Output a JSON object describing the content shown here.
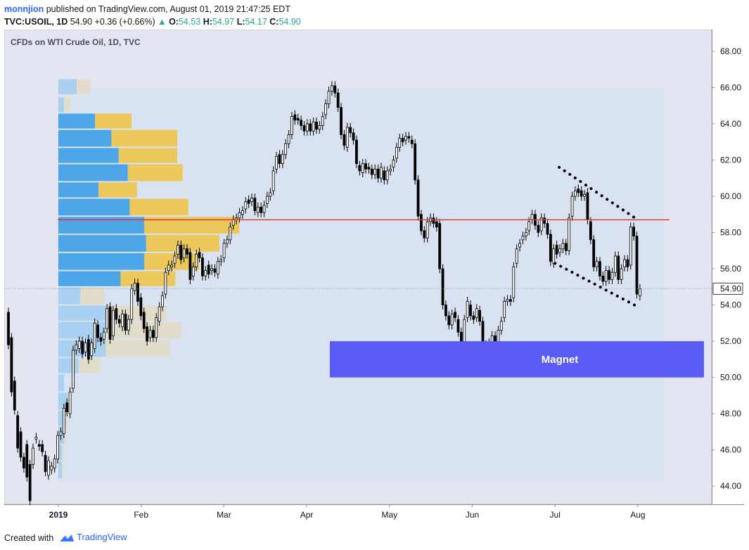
{
  "header": {
    "author": "monnjion",
    "published_text": "published on TradingView.com, August 01, 2019 21:47:25 EDT",
    "symbol": "TVC:USOIL, 1D",
    "last": "54.90",
    "change": "+0.36 (+0.66%)",
    "o_label": "O:",
    "o_value": "54.53",
    "h_label": "H:",
    "h_value": "54.97",
    "l_label": "L:",
    "l_value": "54.17",
    "c_label": "C:",
    "c_value": "54.90"
  },
  "footer": {
    "created_with": "Created with",
    "brand": "TradingView"
  },
  "colors": {
    "resistance_line": "#e53935",
    "magnet_box": "#5a5af5",
    "volume_up_bright": "#4da6e8",
    "volume_down_bright": "#ebc75c",
    "volume_up_faded": "#a9d0ee",
    "volume_down_faded": "#e2dccb",
    "pane_bg": "#e3e6f1",
    "profile_bg": "#d8e2f0"
  },
  "chart_data": {
    "type": "candlestick",
    "title": "CFDs on WTI Crude Oil, 1D, TVC",
    "price_axis": {
      "ticks": [
        "44.00",
        "46.00",
        "48.00",
        "50.00",
        "52.00",
        "54.00",
        "56.00",
        "58.00",
        "60.00",
        "62.00",
        "64.00",
        "66.00",
        "68.00"
      ],
      "range": [
        43.0,
        69.2
      ],
      "last_price_label": "54.90"
    },
    "time_axis": {
      "labels": [
        "2019",
        "Feb",
        "Mar",
        "Apr",
        "May",
        "Jun",
        "Jul",
        "Aug"
      ],
      "label_positions": [
        0.0,
        1.0,
        2.0,
        3.0,
        4.0,
        5.0,
        6.0,
        7.0
      ]
    },
    "candles_end_label_index": 7.0,
    "candles": [
      [
        53.6,
        51.8
      ],
      [
        52.2,
        49.2
      ],
      [
        49.8,
        48.2
      ],
      [
        47.9,
        46.1
      ],
      [
        47.0,
        45.6
      ],
      [
        45.6,
        45.0
      ],
      [
        46.3,
        44.5
      ],
      [
        45.2,
        43.2
      ],
      [
        45.2,
        46.1
      ],
      [
        46.6,
        46.7
      ],
      [
        46.3,
        46.2
      ],
      [
        46.3,
        45.9
      ],
      [
        45.7,
        44.8
      ],
      [
        44.6,
        45.4
      ],
      [
        44.9,
        45.1
      ],
      [
        45.0,
        45.5
      ],
      [
        45.5,
        46.8
      ],
      [
        46.8,
        47.0
      ],
      [
        46.9,
        48.3
      ],
      [
        48.6,
        48.1
      ],
      [
        48.0,
        49.2
      ],
      [
        49.4,
        51.5
      ],
      [
        51.5,
        51.8
      ],
      [
        51.6,
        52.0
      ],
      [
        52.0,
        51.3
      ],
      [
        51.4,
        51.9
      ],
      [
        52.1,
        51.0
      ],
      [
        51.2,
        51.9
      ],
      [
        51.6,
        53.0
      ],
      [
        52.9,
        52.2
      ],
      [
        52.2,
        52.0
      ],
      [
        52.1,
        52.5
      ],
      [
        52.7,
        53.8
      ],
      [
        53.9,
        52.1
      ],
      [
        52.3,
        53.7
      ],
      [
        53.8,
        53.2
      ],
      [
        53.2,
        53.0
      ],
      [
        52.8,
        53.5
      ],
      [
        53.5,
        52.6
      ],
      [
        52.6,
        53.2
      ],
      [
        53.2,
        54.9
      ],
      [
        54.8,
        55.2
      ],
      [
        55.2,
        54.2
      ],
      [
        54.4,
        53.4
      ],
      [
        53.6,
        52.7
      ],
      [
        52.8,
        52.0
      ],
      [
        52.2,
        52.6
      ],
      [
        52.6,
        52.2
      ],
      [
        52.2,
        53.3
      ],
      [
        53.1,
        53.9
      ],
      [
        53.9,
        54.5
      ],
      [
        54.6,
        55.8
      ],
      [
        55.9,
        56.2
      ],
      [
        56.1,
        56.2
      ],
      [
        56.3,
        56.7
      ],
      [
        56.8,
        57.3
      ],
      [
        57.3,
        56.5
      ],
      [
        56.6,
        57.1
      ],
      [
        57.1,
        56.8
      ],
      [
        56.9,
        55.4
      ],
      [
        55.6,
        56.1
      ],
      [
        56.1,
        56.8
      ],
      [
        56.9,
        56.6
      ],
      [
        56.6,
        55.6
      ],
      [
        55.6,
        55.9
      ],
      [
        56.2,
        55.7
      ],
      [
        55.9,
        56.0
      ],
      [
        56.0,
        55.8
      ],
      [
        55.7,
        56.4
      ],
      [
        56.4,
        56.5
      ],
      [
        56.6,
        57.4
      ],
      [
        57.4,
        57.6
      ],
      [
        57.6,
        58.3
      ],
      [
        58.4,
        58.7
      ],
      [
        58.7,
        58.8
      ],
      [
        58.8,
        59.1
      ],
      [
        59.0,
        59.2
      ],
      [
        59.3,
        59.7
      ],
      [
        59.8,
        59.6
      ],
      [
        59.7,
        59.9
      ],
      [
        59.9,
        59.2
      ],
      [
        59.1,
        59.4
      ],
      [
        59.4,
        59.1
      ],
      [
        59.1,
        59.5
      ],
      [
        59.6,
        60.0
      ],
      [
        60.0,
        60.2
      ],
      [
        60.3,
        61.4
      ],
      [
        61.5,
        62.2
      ],
      [
        62.3,
        61.8
      ],
      [
        61.8,
        62.3
      ],
      [
        62.3,
        62.9
      ],
      [
        62.9,
        63.4
      ],
      [
        63.4,
        64.4
      ],
      [
        64.5,
        64.2
      ],
      [
        64.3,
        64.2
      ],
      [
        64.2,
        63.9
      ],
      [
        63.9,
        63.6
      ],
      [
        63.6,
        64.0
      ],
      [
        64.0,
        63.6
      ],
      [
        63.6,
        64.1
      ],
      [
        64.1,
        63.7
      ],
      [
        63.7,
        63.9
      ],
      [
        63.9,
        64.4
      ],
      [
        64.5,
        65.1
      ],
      [
        65.1,
        65.8
      ],
      [
        65.8,
        66.1
      ],
      [
        66.1,
        65.7
      ],
      [
        65.7,
        64.9
      ],
      [
        64.9,
        63.4
      ],
      [
        63.4,
        62.8
      ],
      [
        62.7,
        63.8
      ],
      [
        63.8,
        63.5
      ],
      [
        63.5,
        63.1
      ],
      [
        63.1,
        61.8
      ],
      [
        61.7,
        61.4
      ],
      [
        61.3,
        61.8
      ],
      [
        61.8,
        61.5
      ],
      [
        61.6,
        61.5
      ],
      [
        61.5,
        61.2
      ],
      [
        61.2,
        61.5
      ],
      [
        61.5,
        61.0
      ],
      [
        61.0,
        61.6
      ],
      [
        61.4,
        60.9
      ],
      [
        60.9,
        61.4
      ],
      [
        61.4,
        61.5
      ],
      [
        61.6,
        62.0
      ],
      [
        62.1,
        62.7
      ],
      [
        62.7,
        63.2
      ],
      [
        63.2,
        63.0
      ],
      [
        63.1,
        63.3
      ],
      [
        63.3,
        63.2
      ],
      [
        63.1,
        62.9
      ],
      [
        62.9,
        60.9
      ],
      [
        60.9,
        58.9
      ],
      [
        59.0,
        58.1
      ],
      [
        58.1,
        57.7
      ],
      [
        57.7,
        58.6
      ],
      [
        58.6,
        58.8
      ],
      [
        58.8,
        58.5
      ],
      [
        58.6,
        58.3
      ],
      [
        58.5,
        56.0
      ],
      [
        56.0,
        54.0
      ],
      [
        54.0,
        53.4
      ],
      [
        53.4,
        52.9
      ],
      [
        52.9,
        53.5
      ],
      [
        53.6,
        53.3
      ],
      [
        53.2,
        52.5
      ],
      [
        52.5,
        51.6
      ],
      [
        51.6,
        53.2
      ],
      [
        53.3,
        54.2
      ],
      [
        54.0,
        53.4
      ],
      [
        53.4,
        53.2
      ],
      [
        53.3,
        53.8
      ],
      [
        53.7,
        53.1
      ],
      [
        53.1,
        51.9
      ],
      [
        51.8,
        51.0
      ],
      [
        51.0,
        51.9
      ],
      [
        51.9,
        52.3
      ],
      [
        52.3,
        51.9
      ],
      [
        51.9,
        52.6
      ],
      [
        52.6,
        53.1
      ],
      [
        53.3,
        54.2
      ],
      [
        54.2,
        54.3
      ],
      [
        54.3,
        54.2
      ],
      [
        54.4,
        56.1
      ],
      [
        56.3,
        57.1
      ],
      [
        57.2,
        57.4
      ],
      [
        57.6,
        57.8
      ],
      [
        57.8,
        58.0
      ],
      [
        58.1,
        58.6
      ],
      [
        58.7,
        59.0
      ],
      [
        59.0,
        58.4
      ],
      [
        58.4,
        58.0
      ],
      [
        58.1,
        58.8
      ],
      [
        58.8,
        58.5
      ],
      [
        58.5,
        57.9
      ],
      [
        57.9,
        56.4
      ],
      [
        56.3,
        57.1
      ],
      [
        57.3,
        56.8
      ],
      [
        56.9,
        57.1
      ],
      [
        57.1,
        57.4
      ],
      [
        57.4,
        57.0
      ],
      [
        57.0,
        58.8
      ],
      [
        58.9,
        60.0
      ],
      [
        60.0,
        60.3
      ],
      [
        60.4,
        60.2
      ],
      [
        60.3,
        60.0
      ],
      [
        60.0,
        60.1
      ],
      [
        60.2,
        58.7
      ],
      [
        58.6,
        57.6
      ],
      [
        57.6,
        56.1
      ],
      [
        56.1,
        56.4
      ],
      [
        56.4,
        55.6
      ],
      [
        55.6,
        55.3
      ],
      [
        55.3,
        55.9
      ],
      [
        55.9,
        55.4
      ],
      [
        55.4,
        55.8
      ],
      [
        55.8,
        56.7
      ],
      [
        56.7,
        55.4
      ],
      [
        55.4,
        56.0
      ],
      [
        56.1,
        56.5
      ],
      [
        56.5,
        56.1
      ],
      [
        56.2,
        58.3
      ],
      [
        58.3,
        57.8
      ],
      [
        57.8,
        54.6
      ],
      [
        54.5,
        54.9
      ]
    ],
    "volume_profile": [
      {
        "low": 65.6,
        "high": 66.5,
        "up": 1.0,
        "down": 0.75,
        "faded": true
      },
      {
        "low": 64.6,
        "high": 65.5,
        "up": 0.3,
        "down": 0.35,
        "faded": true
      },
      {
        "low": 63.7,
        "high": 64.6,
        "up": 2.0,
        "down": 2.0,
        "faded": false
      },
      {
        "low": 62.7,
        "high": 63.7,
        "up": 2.9,
        "down": 3.6,
        "faded": false
      },
      {
        "low": 61.8,
        "high": 62.7,
        "up": 3.3,
        "down": 3.2,
        "faded": false
      },
      {
        "low": 60.8,
        "high": 61.8,
        "up": 3.8,
        "down": 3.0,
        "faded": false
      },
      {
        "low": 59.9,
        "high": 60.8,
        "up": 2.2,
        "down": 2.1,
        "faded": false
      },
      {
        "low": 58.9,
        "high": 59.9,
        "up": 3.9,
        "down": 3.2,
        "faded": false
      },
      {
        "low": 57.9,
        "high": 58.9,
        "up": 4.7,
        "down": 5.2,
        "faded": false
      },
      {
        "low": 56.9,
        "high": 57.9,
        "up": 4.8,
        "down": 4.0,
        "faded": false
      },
      {
        "low": 55.9,
        "high": 56.9,
        "up": 4.7,
        "down": 3.0,
        "faded": false
      },
      {
        "low": 55.0,
        "high": 55.9,
        "up": 3.4,
        "down": 3.0,
        "faded": false
      },
      {
        "low": 54.0,
        "high": 55.0,
        "up": 1.2,
        "down": 1.3,
        "faded": true
      },
      {
        "low": 53.1,
        "high": 54.0,
        "up": 2.6,
        "down": 3.3,
        "faded": true
      },
      {
        "low": 52.1,
        "high": 53.1,
        "up": 2.6,
        "down": 4.1,
        "faded": true
      },
      {
        "low": 51.1,
        "high": 52.1,
        "up": 2.6,
        "down": 3.5,
        "faded": true
      },
      {
        "low": 50.2,
        "high": 51.1,
        "up": 1.1,
        "down": 1.2,
        "faded": true
      },
      {
        "low": 49.2,
        "high": 50.2,
        "up": 0.3,
        "down": 0.0,
        "faded": true
      },
      {
        "low": 48.2,
        "high": 49.2,
        "up": 0.5,
        "down": 0.1,
        "faded": true
      },
      {
        "low": 47.3,
        "high": 48.2,
        "up": 0.4,
        "down": 0.1,
        "faded": true
      },
      {
        "low": 46.3,
        "high": 47.3,
        "up": 0.3,
        "down": 0.1,
        "faded": true
      },
      {
        "low": 45.4,
        "high": 46.3,
        "up": 0.2,
        "down": 0.1,
        "faded": true
      },
      {
        "low": 44.4,
        "high": 45.4,
        "up": 0.2,
        "down": 0.1,
        "faded": true
      }
    ],
    "horizontal_line": 58.7,
    "magnet_zone": {
      "low": 50.0,
      "high": 52.0,
      "label": "Magnet"
    },
    "channel_lines": [
      {
        "from": {
          "t": 6.05,
          "p": 61.6
        },
        "to": {
          "t": 7.0,
          "p": 58.7
        }
      },
      {
        "from": {
          "t": 6.0,
          "p": 56.3
        },
        "to": {
          "t": 7.0,
          "p": 53.9
        }
      }
    ]
  }
}
